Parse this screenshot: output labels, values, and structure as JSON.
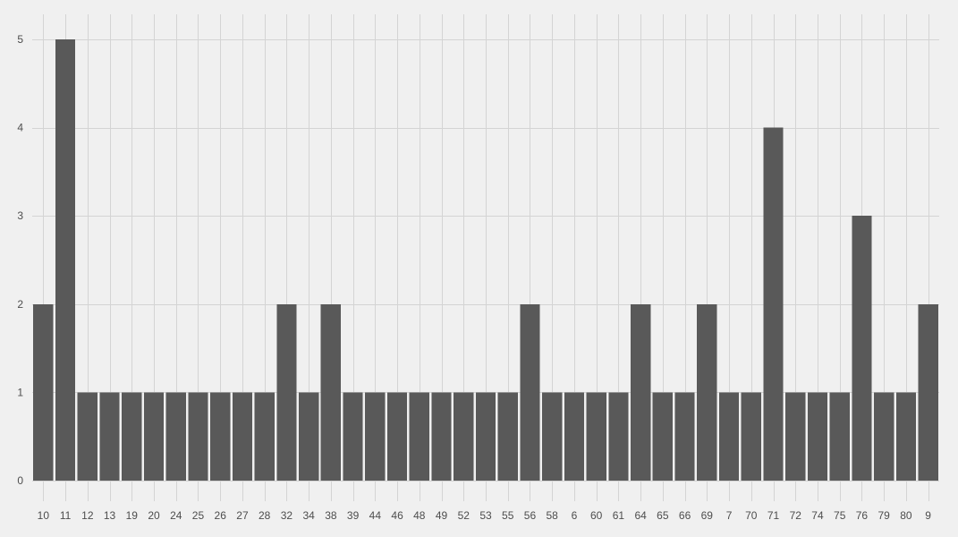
{
  "chart_data": {
    "type": "bar",
    "title": "",
    "xlabel": "",
    "ylabel": "",
    "categories": [
      "10",
      "11",
      "12",
      "13",
      "19",
      "20",
      "24",
      "25",
      "26",
      "27",
      "28",
      "32",
      "34",
      "38",
      "39",
      "44",
      "46",
      "48",
      "49",
      "52",
      "53",
      "55",
      "56",
      "58",
      "6",
      "60",
      "61",
      "64",
      "65",
      "66",
      "69",
      "7",
      "70",
      "71",
      "72",
      "74",
      "75",
      "76",
      "79",
      "80",
      "9"
    ],
    "values": [
      2,
      5,
      1,
      1,
      1,
      1,
      1,
      1,
      1,
      1,
      1,
      2,
      1,
      2,
      1,
      1,
      1,
      1,
      1,
      1,
      1,
      1,
      2,
      1,
      1,
      1,
      1,
      2,
      1,
      1,
      2,
      1,
      1,
      4,
      1,
      1,
      1,
      3,
      1,
      1,
      2
    ],
    "ylim": [
      0,
      5
    ],
    "yticks": [
      0,
      1,
      2,
      3,
      4,
      5
    ],
    "grid": true,
    "legend": "none",
    "colors": {
      "background": "#f0f0f0",
      "bar": "#595959",
      "grid": "#d4d4d4",
      "text": "#4d4d4d"
    }
  }
}
